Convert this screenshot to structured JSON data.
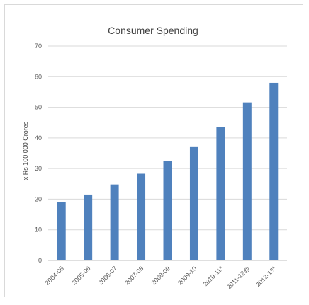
{
  "chart_data": {
    "type": "bar",
    "title": "Consumer Spending",
    "xlabel": "",
    "ylabel": "x Rs 100,000 Crores",
    "categories": [
      "2004-05",
      "2005-06",
      "2006-07",
      "2007-08",
      "2008-09",
      "2009-10",
      "2010-11*",
      "2011-12@",
      "2012-13*"
    ],
    "values": [
      19,
      21.5,
      24.8,
      28.3,
      32.5,
      37,
      43.6,
      51.6,
      58
    ],
    "ylim": [
      0,
      70
    ],
    "yticks": [
      0,
      10,
      20,
      30,
      40,
      50,
      60,
      70
    ],
    "grid": true,
    "legend": "none",
    "bar_color": "#4f81bd"
  }
}
